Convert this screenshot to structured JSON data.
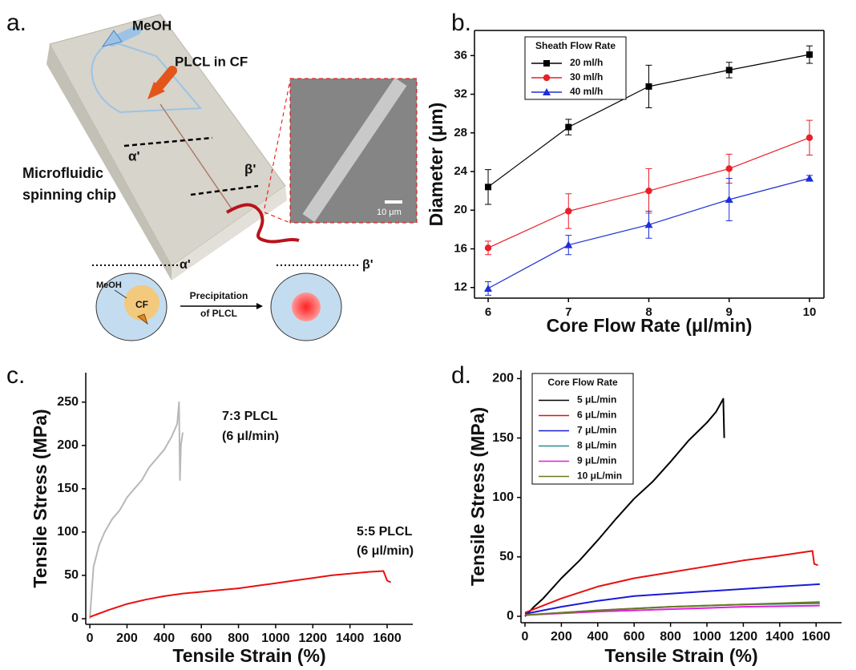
{
  "panel_a": {
    "label": "a.",
    "inlet_1": "MeOH",
    "inlet_2": "PLCL in CF",
    "section_1": "α'",
    "section_2": "β'",
    "chip": [
      "Microfluidic",
      "spinning chip"
    ],
    "scale_bar": "10 μm",
    "schematic": {
      "section_1": "α'",
      "section_2": "β'",
      "solvent": "MeOH",
      "core": "CF",
      "process": [
        "Precipitation",
        "of PLCL"
      ]
    }
  },
  "chart_data": [
    {
      "type": "line",
      "panel_label": "b.",
      "frame": true,
      "x_label": "Core Flow Rate (μl/min)",
      "y_label": "Diameter (μm)",
      "x": [
        6,
        7,
        8,
        9,
        10
      ],
      "xlim": [
        5.83,
        10.18
      ],
      "xticks": [
        6,
        7,
        8,
        9,
        10
      ],
      "ylim": [
        10.9,
        38.6
      ],
      "yticks": [
        12,
        16,
        20,
        24,
        28,
        32,
        36
      ],
      "legend": "upper left",
      "legend_title": "Sheath Flow Rate",
      "series": [
        {
          "name": "20 ml/h",
          "color": "#000000",
          "marker": "square",
          "values": [
            22.4,
            28.6,
            32.8,
            34.5,
            36.1
          ],
          "errors": [
            1.8,
            0.8,
            2.2,
            0.8,
            0.9
          ]
        },
        {
          "name": "30 ml/h",
          "color": "#e8202a",
          "marker": "circle",
          "values": [
            16.1,
            19.9,
            22.0,
            24.3,
            27.5
          ],
          "errors": [
            0.7,
            1.8,
            2.3,
            1.5,
            1.8
          ]
        },
        {
          "name": "40 ml/h",
          "color": "#1f2fd6",
          "marker": "triangle",
          "values": [
            11.9,
            16.4,
            18.5,
            21.1,
            23.3
          ],
          "errors": [
            0.7,
            1.0,
            1.4,
            2.2,
            0.3
          ]
        }
      ]
    },
    {
      "type": "line",
      "panel_label": "c.",
      "frame": false,
      "x_label": "Tensile Strain (%)",
      "y_label": "Tensile Stress (MPa)",
      "xlim": [
        -22,
        1738
      ],
      "xticks": [
        0,
        200,
        400,
        600,
        800,
        1000,
        1200,
        1400,
        1600
      ],
      "ylim": [
        -6.5,
        284
      ],
      "yticks": [
        0,
        50,
        100,
        150,
        200,
        250
      ],
      "annotations": [
        "7:3 PLCL",
        "(6 μl/min)",
        "5:5 PLCL",
        "(6 μl/min)"
      ],
      "series": [
        {
          "color": "#b8b8b8",
          "x": [
            0,
            20,
            50,
            80,
            120,
            160,
            200,
            240,
            280,
            320,
            360,
            400,
            440,
            470,
            480,
            485,
            490,
            500
          ],
          "values": [
            0,
            60,
            85,
            100,
            115,
            125,
            140,
            150,
            160,
            175,
            185,
            195,
            210,
            225,
            250,
            160,
            200,
            215
          ]
        },
        {
          "color": "#e81010",
          "x": [
            0,
            50,
            100,
            200,
            300,
            400,
            500,
            600,
            700,
            800,
            900,
            1000,
            1100,
            1200,
            1300,
            1400,
            1500,
            1580,
            1600,
            1620
          ],
          "values": [
            2,
            6,
            10,
            17,
            22,
            26,
            29,
            31,
            33,
            35,
            38,
            41,
            44,
            47,
            50,
            52,
            54,
            55,
            44,
            42
          ]
        }
      ]
    },
    {
      "type": "line",
      "panel_label": "d.",
      "frame": false,
      "x_label": "Tensile Strain (%)",
      "y_label": "Tensile Stress (MPa)",
      "xlim": [
        -22,
        1740
      ],
      "xticks": [
        0,
        200,
        400,
        600,
        800,
        1000,
        1200,
        1400,
        1600
      ],
      "ylim": [
        -5.4,
        207
      ],
      "yticks": [
        0,
        50,
        100,
        150,
        200
      ],
      "legend": "upper left",
      "legend_title": "Core Flow Rate",
      "series": [
        {
          "name": "5 μL/min",
          "color": "#000000",
          "x": [
            0,
            50,
            100,
            200,
            300,
            400,
            500,
            600,
            700,
            800,
            900,
            1000,
            1050,
            1090,
            1095
          ],
          "values": [
            0,
            8,
            15,
            32,
            47,
            64,
            82,
            99,
            113,
            130,
            148,
            163,
            172,
            183,
            150
          ]
        },
        {
          "name": "6 μL/min",
          "color": "#e81010",
          "x": [
            0,
            100,
            200,
            400,
            600,
            800,
            1000,
            1200,
            1400,
            1580,
            1590,
            1610
          ],
          "values": [
            3,
            9,
            15,
            25,
            32,
            37,
            42,
            47,
            51,
            55,
            44,
            43
          ]
        },
        {
          "name": "7 μL/min",
          "color": "#1a1ad8",
          "x": [
            0,
            200,
            400,
            600,
            800,
            1000,
            1200,
            1400,
            1620
          ],
          "values": [
            2,
            8,
            13,
            17,
            19,
            21,
            23,
            25,
            27
          ]
        },
        {
          "name": "8 μL/min",
          "color": "#2a8a8a",
          "x": [
            0,
            400,
            800,
            1200,
            1620
          ],
          "values": [
            1,
            5,
            8,
            10,
            11
          ]
        },
        {
          "name": "9 μL/min",
          "color": "#e020e0",
          "x": [
            0,
            400,
            800,
            1200,
            1620
          ],
          "values": [
            1,
            4,
            6,
            8,
            9
          ]
        },
        {
          "name": "10 μL/min",
          "color": "#6b7a20",
          "x": [
            0,
            400,
            800,
            1200,
            1620
          ],
          "values": [
            1,
            5,
            8,
            10,
            12
          ]
        }
      ]
    }
  ]
}
